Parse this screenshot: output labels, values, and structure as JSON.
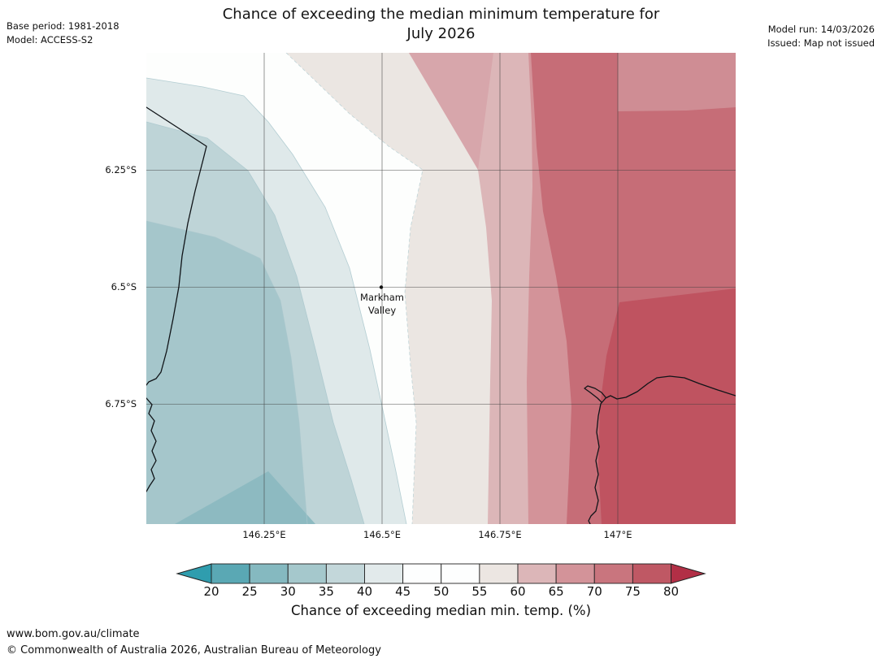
{
  "header": {
    "title_line1": "Chance of exceeding the median minimum temperature for",
    "title_line2": "July 2026",
    "meta_left_line1": "Base period: 1981-2018",
    "meta_left_line2": "Model: ACCESS-S2",
    "meta_right_line1": "Model run: 14/03/2026",
    "meta_right_line2": "Issued: Map not issued"
  },
  "map": {
    "lat_ticks": [
      "6.25°S",
      "6.5°S",
      "6.75°S"
    ],
    "lon_ticks": [
      "146.25°E",
      "146.5°E",
      "146.75°E",
      "147°E"
    ],
    "place_line1": "Markham",
    "place_line2": "Valley",
    "band_colors": {
      "b25_30": "#8dbac1",
      "b30_35": "#a5c6cb",
      "b35_40": "#bed4d7",
      "b40_45": "#dfe9ea",
      "white": "#fdfefd",
      "b55_60": "#ebe6e2",
      "b60_65": "#dcb6b8",
      "b65_70": "#d39399",
      "b65_70_corner": "#cf8d94",
      "b60_65_wedge": "#d7a6ab",
      "b70_75": "#c66d77",
      "b75_80": "#bf5360"
    },
    "line_colors": {
      "gridline": "#3c3c3c",
      "coastline": "#101418",
      "contour_faint": "#a9c7cd"
    }
  },
  "colorbar": {
    "ticks": [
      "20",
      "25",
      "30",
      "35",
      "40",
      "45",
      "50",
      "55",
      "60",
      "65",
      "70",
      "75",
      "80"
    ],
    "cell_colors": [
      "#5aa8b4",
      "#85b9c0",
      "#a5c8cc",
      "#c3d7da",
      "#e2eaeb",
      "#fdfefe",
      "#fdfefe",
      "#ece6e2",
      "#dcb6b8",
      "#d39399",
      "#c9757e",
      "#bf5864"
    ],
    "arrow_left_color": "#2f9dae",
    "arrow_right_color": "#b22f46",
    "outline_color": "#222222",
    "caption": "Chance of exceeding median min. temp. (%)"
  },
  "chart_data": {
    "type": "heatmap",
    "title": "Chance of exceeding the median minimum temperature for July 2026",
    "legend_label": "Chance of exceeding median min. temp. (%)",
    "legend_ticks": [
      20,
      25,
      30,
      35,
      40,
      45,
      50,
      55,
      60,
      65,
      70,
      75,
      80
    ],
    "x_axis_ticks_lon_E": [
      146.25,
      146.5,
      146.75,
      147.0
    ],
    "y_axis_ticks_lat_S": [
      6.25,
      6.5,
      6.75
    ],
    "marked_location": {
      "name": "Markham Valley",
      "lon_E": 146.5,
      "lat_S": 6.5,
      "approx_value_pct": 50
    },
    "gradient_description": "Values rise west to east: ~30% far west (teal), ~45-55% centre near Markham Valley (white), ~60-70% east, 75-80% far east and southeast (dark red)"
  },
  "footer": {
    "line1": "www.bom.gov.au/climate",
    "line2": "© Commonwealth of Australia 2026, Australian Bureau of Meteorology"
  }
}
